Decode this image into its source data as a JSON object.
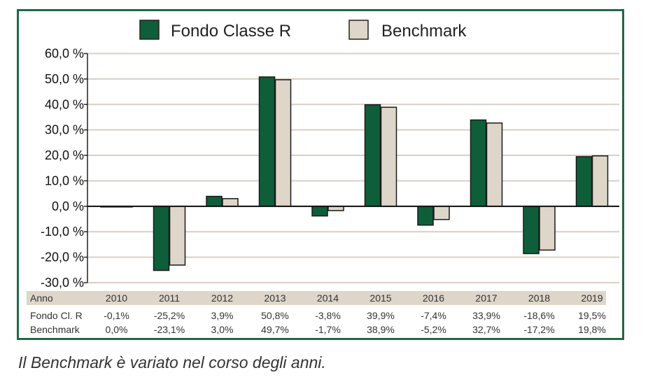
{
  "chart_data": {
    "type": "bar",
    "categories": [
      "2010",
      "2011",
      "2012",
      "2013",
      "2014",
      "2015",
      "2016",
      "2017",
      "2018",
      "2019"
    ],
    "series": [
      {
        "name": "Fondo Classe R",
        "values": [
          -0.1,
          -25.2,
          3.9,
          50.8,
          -3.8,
          39.9,
          -7.4,
          33.9,
          -18.6,
          19.5
        ],
        "color": "#0e5e3a"
      },
      {
        "name": "Benchmark",
        "values": [
          0.0,
          -23.1,
          3.0,
          49.7,
          -1.7,
          38.9,
          -5.2,
          32.7,
          -17.2,
          19.8
        ],
        "color": "#ddd6c9"
      }
    ],
    "ylim": [
      -30,
      60
    ],
    "yticks": [
      60,
      50,
      40,
      30,
      20,
      10,
      0,
      -10,
      -20,
      -30
    ],
    "ytick_labels": [
      "60,0 %",
      "50,0 %",
      "40,0 %",
      "30,0 %",
      "20,0 %",
      "10,0 %",
      "0,0 %",
      "-10,0 %",
      "-20,0 %",
      "-30,0 %"
    ],
    "legend_position": "top",
    "grid": true,
    "table": {
      "header_label": "Anno",
      "rows": [
        {
          "label": "Fondo Cl. R",
          "values": [
            "-0,1%",
            "-25,2%",
            "3,9%",
            "50,8%",
            "-3,8%",
            "39,9%",
            "-7,4%",
            "33,9%",
            "-18,6%",
            "19,5%"
          ]
        },
        {
          "label": "Benchmark",
          "values": [
            "0,0%",
            "-23,1%",
            "3,0%",
            "49,7%",
            "-1,7%",
            "38,9%",
            "-5,2%",
            "32,7%",
            "-17,2%",
            "19,8%"
          ]
        }
      ]
    }
  },
  "colors": {
    "frame": "#1e6a45",
    "grid": "#d9cfc4",
    "header_band": "#ddd6c9"
  },
  "caption": "Il Benchmark è variato nel corso degli anni."
}
